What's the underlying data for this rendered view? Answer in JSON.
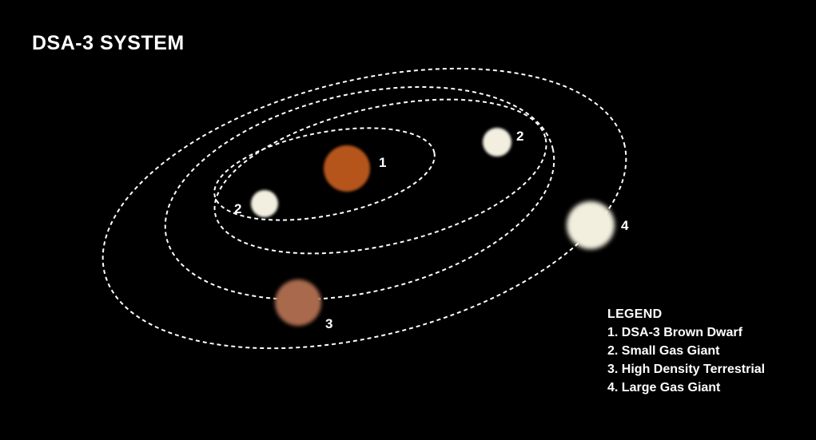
{
  "title": "DSA-3 SYSTEM",
  "bodies": [
    {
      "id": "brown-dwarf",
      "label": "1",
      "color": "#b5541c"
    },
    {
      "id": "small-gas-giant-inner",
      "label": "2",
      "color": "#f2eee0"
    },
    {
      "id": "small-gas-giant-outer",
      "label": "2",
      "color": "#f2eee0"
    },
    {
      "id": "high-density-terrestrial",
      "label": "3",
      "color": "#a8694e"
    },
    {
      "id": "large-gas-giant",
      "label": "4",
      "color": "#f3efdf"
    }
  ],
  "legend": {
    "title": "LEGEND",
    "items": [
      "1. DSA-3 Brown Dwarf",
      "2. Small Gas Giant",
      "3. High Density Terrestrial",
      "4. Large Gas Giant"
    ]
  }
}
